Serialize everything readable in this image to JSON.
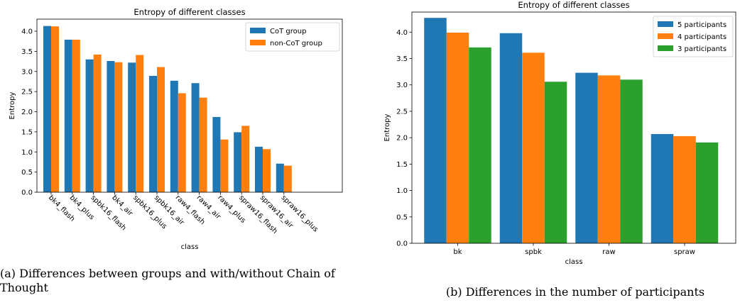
{
  "chart_data": [
    {
      "type": "bar",
      "title": "Entropy of different classes",
      "xlabel": "class",
      "ylabel": "Entropy",
      "ylim": [
        0,
        4.3
      ],
      "yticks": [
        "0.0",
        "0.5",
        "1.0",
        "1.5",
        "2.0",
        "2.5",
        "3.0",
        "3.5",
        "4.0"
      ],
      "categories": [
        "bk4_flash",
        "bk4_plus",
        "spbk16_flash",
        "bk4_air",
        "spbk16_plus",
        "spbk16_air",
        "raw4_flash",
        "raw4_air",
        "raw4_plus",
        "spraw16_flash",
        "spraw16_air",
        "spraw16_plus"
      ],
      "series": [
        {
          "name": "CoT group",
          "color": "#1f77b4",
          "values": [
            4.13,
            3.79,
            3.3,
            3.26,
            3.22,
            2.89,
            2.77,
            2.71,
            1.87,
            1.49,
            1.13,
            0.71
          ]
        },
        {
          "name": "non-CoT group",
          "color": "#ff7f0e",
          "values": [
            4.12,
            3.79,
            3.42,
            3.23,
            3.41,
            3.11,
            2.46,
            2.35,
            1.31,
            1.65,
            1.07,
            0.66
          ]
        }
      ],
      "legend": "top-right",
      "grid": false,
      "caption": "(a) Differences between groups and with/without Chain of Thought"
    },
    {
      "type": "bar",
      "title": "Entropy of different classes",
      "xlabel": "class",
      "ylabel": "Entropy",
      "ylim": [
        0,
        4.38
      ],
      "yticks": [
        "0.0",
        "0.5",
        "1.0",
        "1.5",
        "2.0",
        "2.5",
        "3.0",
        "3.5",
        "4.0"
      ],
      "categories": [
        "bk",
        "spbk",
        "raw",
        "spraw"
      ],
      "series": [
        {
          "name": "5 participants",
          "color": "#1f77b4",
          "values": [
            4.27,
            3.98,
            3.23,
            2.07
          ]
        },
        {
          "name": "4 participants",
          "color": "#ff7f0e",
          "values": [
            3.99,
            3.61,
            3.18,
            2.03
          ]
        },
        {
          "name": "3 participants",
          "color": "#2ca02c",
          "values": [
            3.71,
            3.06,
            3.1,
            1.91
          ]
        }
      ],
      "legend": "top-right",
      "grid": false,
      "caption": "(b) Differences in the number of participants"
    }
  ]
}
